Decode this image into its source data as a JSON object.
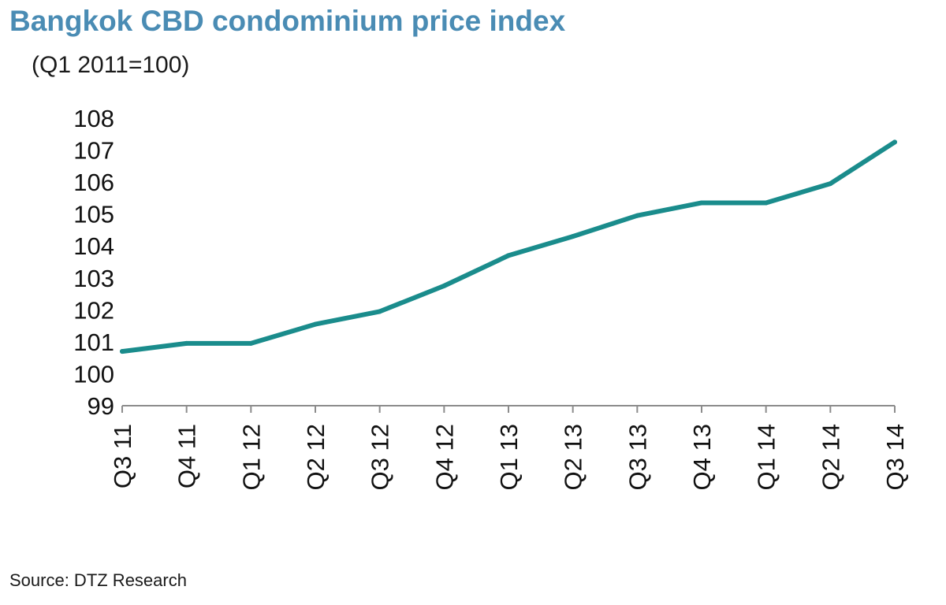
{
  "header": {
    "title": "Bangkok CBD condominium price index",
    "subtitle": "(Q1 2011=100)"
  },
  "footer": {
    "source": "Source: DTZ Research"
  },
  "colors": {
    "title": "#4a8cb4",
    "line": "#1a8c8c",
    "axis": "#8c8c8c",
    "text": "#111111"
  },
  "chart_data": {
    "type": "line",
    "title": "Bangkok CBD condominium price index",
    "subtitle": "(Q1 2011=100)",
    "xlabel": "",
    "ylabel": "",
    "categories": [
      "Q3 11",
      "Q4 11",
      "Q1 12",
      "Q2 12",
      "Q3 12",
      "Q4 12",
      "Q1 13",
      "Q2 13",
      "Q3 13",
      "Q4 13",
      "Q1 14",
      "Q2 14",
      "Q3 14"
    ],
    "series": [
      {
        "values": [
          100.7,
          100.95,
          100.95,
          101.55,
          101.95,
          102.75,
          103.7,
          104.3,
          104.95,
          105.35,
          105.35,
          105.95,
          107.25
        ]
      }
    ],
    "ylim": [
      99,
      108
    ],
    "yticks": [
      99,
      100,
      101,
      102,
      103,
      104,
      105,
      106,
      107,
      108
    ],
    "grid": false,
    "legend": "none"
  }
}
